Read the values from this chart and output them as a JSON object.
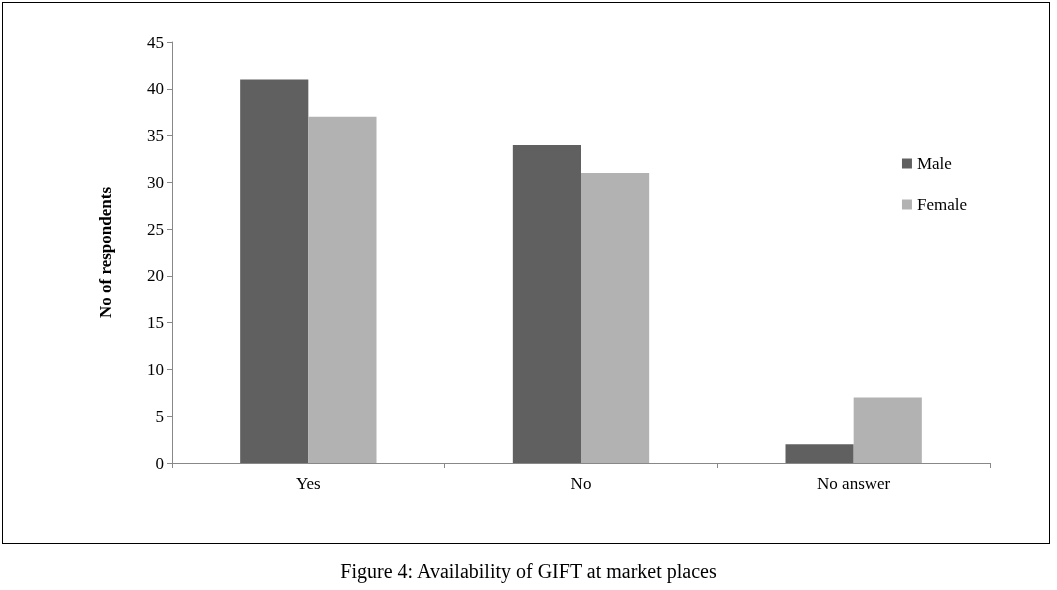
{
  "chart_data": {
    "type": "bar",
    "title": "Figure 4: Availability of GIFT at market places",
    "ylabel": "No of respondents",
    "categories": [
      "Yes",
      "No",
      "No answer"
    ],
    "series": [
      {
        "name": "Male",
        "color": "#606060",
        "values": [
          41,
          34,
          2
        ]
      },
      {
        "name": "Female",
        "color": "#b2b2b2",
        "values": [
          37,
          31,
          7
        ]
      }
    ],
    "ylim": [
      0,
      45
    ],
    "yticks": [
      0,
      5,
      10,
      15,
      20,
      25,
      30,
      35,
      40,
      45
    ],
    "grid": false,
    "legend": "right"
  }
}
